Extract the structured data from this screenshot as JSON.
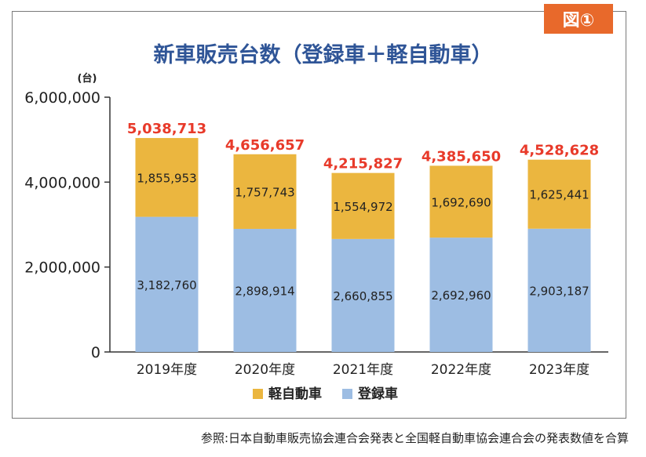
{
  "badge": "図①",
  "title": "新車販売台数（登録車＋軽自動車）",
  "source": "参照:日本自動車販売協会連合会発表と全国軽自動車協会連合会の発表数値を合算",
  "chart_data": {
    "type": "bar",
    "stacked": true,
    "title": "新車販売台数（登録車＋軽自動車）",
    "ylabel": "(台)",
    "xlabel": "",
    "ylim": [
      0,
      6000000
    ],
    "yticks": [
      0,
      2000000,
      4000000,
      6000000
    ],
    "ytick_labels": [
      "0",
      "2,000,000",
      "4,000,000",
      "6,000,000"
    ],
    "categories": [
      "2019年度",
      "2020年度",
      "2021年度",
      "2022年度",
      "2023年度"
    ],
    "series": [
      {
        "name": "登録車",
        "color": "#9dbde3",
        "values": [
          3182760,
          2898914,
          2660855,
          2692960,
          2903187
        ],
        "labels": [
          "3,182,760",
          "2,898,914",
          "2,660,855",
          "2,692,960",
          "2,903,187"
        ]
      },
      {
        "name": "軽自動車",
        "color": "#ebb63f",
        "values": [
          1855953,
          1757743,
          1554972,
          1692690,
          1625441
        ],
        "labels": [
          "1,855,953",
          "1,757,743",
          "1,554,972",
          "1,692,690",
          "1,625,441"
        ]
      }
    ],
    "totals": [
      5038713,
      4656657,
      4215827,
      4385650,
      4528628
    ],
    "total_labels": [
      "5,038,713",
      "4,656,657",
      "4,215,827",
      "4,385,650",
      "4,528,628"
    ],
    "total_color": "#e83a2a",
    "legend": {
      "position": "bottom",
      "order": [
        "軽自動車",
        "登録車"
      ]
    },
    "grid": false
  }
}
